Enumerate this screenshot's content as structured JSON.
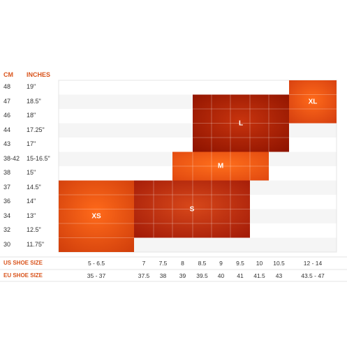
{
  "chart_data": {
    "type": "table",
    "headers": {
      "cm": "CM",
      "inches": "INCHES"
    },
    "rows": [
      {
        "cm": "48",
        "inches": "19\""
      },
      {
        "cm": "47",
        "inches": "18.5\""
      },
      {
        "cm": "46",
        "inches": "18\""
      },
      {
        "cm": "44",
        "inches": "17.25\""
      },
      {
        "cm": "43",
        "inches": "17\""
      },
      {
        "cm": "38-42",
        "inches": "15-16.5\""
      },
      {
        "cm": "38",
        "inches": "15\""
      },
      {
        "cm": "37",
        "inches": "14.5\""
      },
      {
        "cm": "36",
        "inches": "14\""
      },
      {
        "cm": "34",
        "inches": "13\""
      },
      {
        "cm": "32",
        "inches": "12.5\""
      },
      {
        "cm": "30",
        "inches": "11.75\""
      }
    ],
    "us_label": "US SHOE SIZE",
    "eu_label": "EU SHOE SIZE",
    "columns": [
      {
        "us": "5 - 6.5",
        "eu": "35 - 37"
      },
      {
        "us": "7",
        "eu": "37.5"
      },
      {
        "us": "7.5",
        "eu": "38"
      },
      {
        "us": "8",
        "eu": "39"
      },
      {
        "us": "8.5",
        "eu": "39.5"
      },
      {
        "us": "9",
        "eu": "40"
      },
      {
        "us": "9.5",
        "eu": "41"
      },
      {
        "us": "10",
        "eu": "41.5"
      },
      {
        "us": "10.5",
        "eu": "43"
      },
      {
        "us": "12 - 14",
        "eu": "43.5 - 47"
      }
    ],
    "sizes": [
      {
        "label": "XS",
        "col_start": 0,
        "col_end": 0,
        "row_start": 7,
        "row_end": 11,
        "color_light": "#ff6a1a",
        "color_dark": "#d2400c"
      },
      {
        "label": "S",
        "col_start": 1,
        "col_end": 6,
        "row_start": 7,
        "row_end": 10,
        "color_light": "#d8481a",
        "color_dark": "#a41c08"
      },
      {
        "label": "M",
        "col_start": 3,
        "col_end": 7,
        "row_start": 5,
        "row_end": 6,
        "color_light": "#ff6f1c",
        "color_dark": "#e24a10"
      },
      {
        "label": "L",
        "col_start": 4,
        "col_end": 8,
        "row_start": 1,
        "row_end": 4,
        "color_light": "#c8340e",
        "color_dark": "#901400"
      },
      {
        "label": "XL",
        "col_start": 9,
        "col_end": 9,
        "row_start": 0,
        "row_end": 2,
        "color_light": "#ff6a1a",
        "color_dark": "#d64010"
      }
    ]
  },
  "colors": {
    "accent": "#d9541c",
    "stripe": "#f5f5f5",
    "grid_line": "#e4e4e4"
  }
}
